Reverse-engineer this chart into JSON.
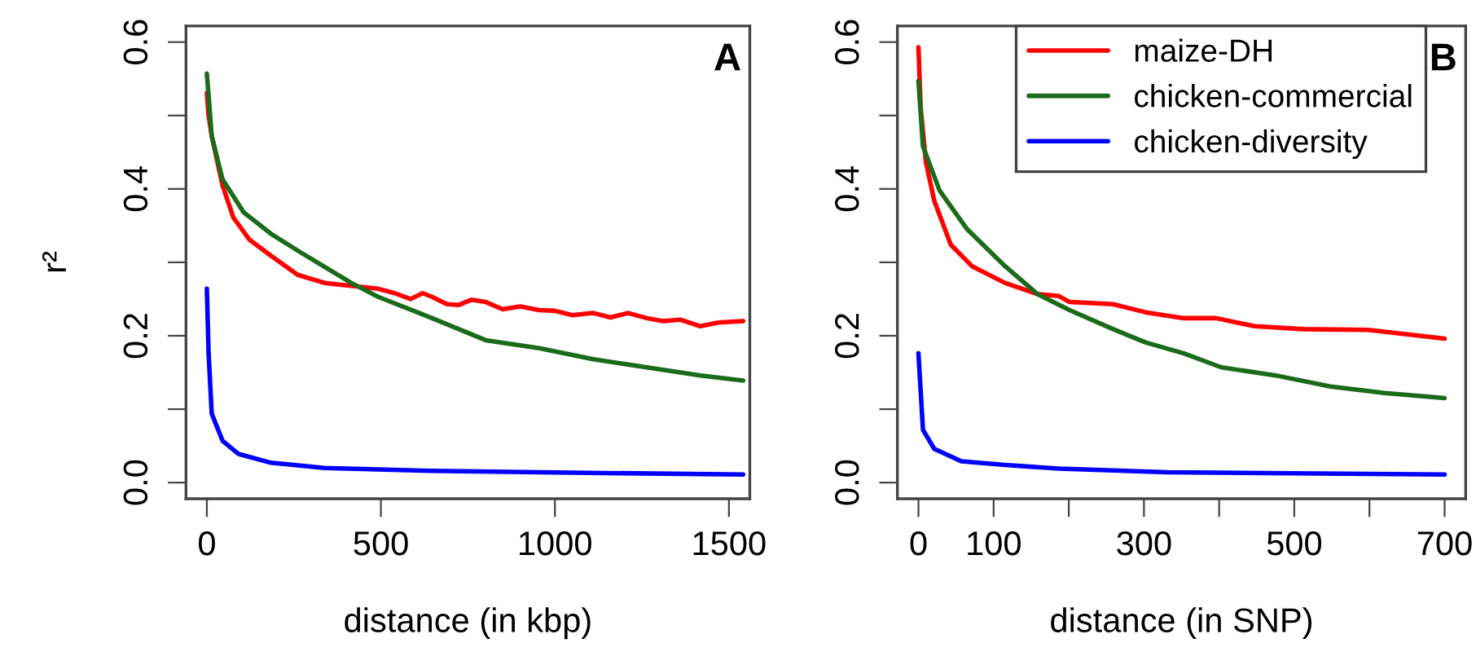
{
  "chart_data": [
    {
      "type": "line",
      "xlabel": "distance (in kbp)",
      "ylabel": "r²",
      "annotations": [
        "A"
      ],
      "xlim": [
        -60,
        1560
      ],
      "ylim": [
        -0.022,
        0.622
      ],
      "xticks": [
        0,
        500,
        1000,
        1500
      ],
      "yticks": [
        {
          "value": 0,
          "label": "0.0"
        },
        {
          "value": 0.1,
          "label": null
        },
        0.2,
        {
          "value": 0.3,
          "label": null
        },
        0.4,
        {
          "value": 0.5,
          "label": null
        },
        0.6
      ],
      "grid": false,
      "legend": false,
      "line_style": "solid",
      "marker": "none",
      "series": [
        {
          "color": "#ff0000",
          "x": [
            0,
            5,
            14,
            45,
            76,
            122,
            184,
            261,
            338,
            415,
            492,
            540,
            585,
            620,
            647,
            690,
            724,
            760,
            801,
            850,
            900,
            955,
            1000,
            1050,
            1110,
            1160,
            1210,
            1264,
            1310,
            1360,
            1418,
            1470,
            1541
          ],
          "values": [
            0.531,
            0.5,
            0.472,
            0.405,
            0.361,
            0.331,
            0.309,
            0.283,
            0.272,
            0.268,
            0.264,
            0.258,
            0.25,
            0.258,
            0.253,
            0.243,
            0.242,
            0.249,
            0.246,
            0.236,
            0.24,
            0.235,
            0.234,
            0.228,
            0.231,
            0.225,
            0.231,
            0.224,
            0.22,
            0.222,
            0.213,
            0.218,
            0.22
          ]
        },
        {
          "color": "#1a6b1a",
          "x": [
            0,
            14,
            45,
            106,
            184,
            261,
            338,
            415,
            492,
            647,
            801,
            955,
            1110,
            1264,
            1418,
            1541
          ],
          "values": [
            0.557,
            0.472,
            0.413,
            0.368,
            0.339,
            0.316,
            0.294,
            0.272,
            0.253,
            0.224,
            0.194,
            0.183,
            0.168,
            0.157,
            0.146,
            0.139
          ]
        },
        {
          "color": "#0000ff",
          "x": [
            0,
            5,
            14,
            45,
            91,
            184,
            338,
            647,
            955,
            1541
          ],
          "values": [
            0.264,
            0.176,
            0.094,
            0.057,
            0.039,
            0.027,
            0.02,
            0.016,
            0.014,
            0.011
          ]
        }
      ]
    },
    {
      "type": "line",
      "xlabel": "distance (in SNP)",
      "annotations": [
        "B"
      ],
      "xlim": [
        -28,
        728
      ],
      "ylim": [
        -0.022,
        0.622
      ],
      "xticks": [
        0,
        100,
        {
          "value": 200,
          "label": null
        },
        300,
        {
          "value": 400,
          "label": null
        },
        500,
        {
          "value": 600,
          "label": null
        },
        700
      ],
      "yticks": [
        {
          "value": 0,
          "label": "0.0"
        },
        {
          "value": 0.1,
          "label": null
        },
        0.2,
        {
          "value": 0.3,
          "label": null
        },
        0.4,
        {
          "value": 0.5,
          "label": null
        },
        0.6
      ],
      "grid": false,
      "legend": "top right",
      "line_style": "solid",
      "marker": "none",
      "series": [
        {
          "name": "maize-DH",
          "color": "#ff0000",
          "x": [
            0,
            3,
            10,
            21,
            43,
            71,
            115,
            158,
            187,
            201,
            259,
            302,
            353,
            396,
            447,
            512,
            598,
            700
          ],
          "values": [
            0.593,
            0.51,
            0.436,
            0.384,
            0.324,
            0.295,
            0.272,
            0.257,
            0.254,
            0.246,
            0.243,
            0.232,
            0.224,
            0.224,
            0.213,
            0.209,
            0.208,
            0.196
          ]
        },
        {
          "name": "chicken-commercial",
          "color": "#1a6b1a",
          "x": [
            0,
            6,
            28,
            64,
            115,
            158,
            201,
            259,
            302,
            353,
            403,
            475,
            548,
            620,
            700
          ],
          "values": [
            0.547,
            0.458,
            0.398,
            0.346,
            0.295,
            0.257,
            0.235,
            0.209,
            0.191,
            0.176,
            0.157,
            0.146,
            0.131,
            0.122,
            0.115
          ]
        },
        {
          "name": "chicken-diversity",
          "color": "#0000ff",
          "x": [
            0,
            6,
            21,
            57,
            115,
            187,
            331,
            700
          ],
          "values": [
            0.176,
            0.072,
            0.046,
            0.029,
            0.024,
            0.019,
            0.014,
            0.011
          ]
        }
      ]
    }
  ]
}
